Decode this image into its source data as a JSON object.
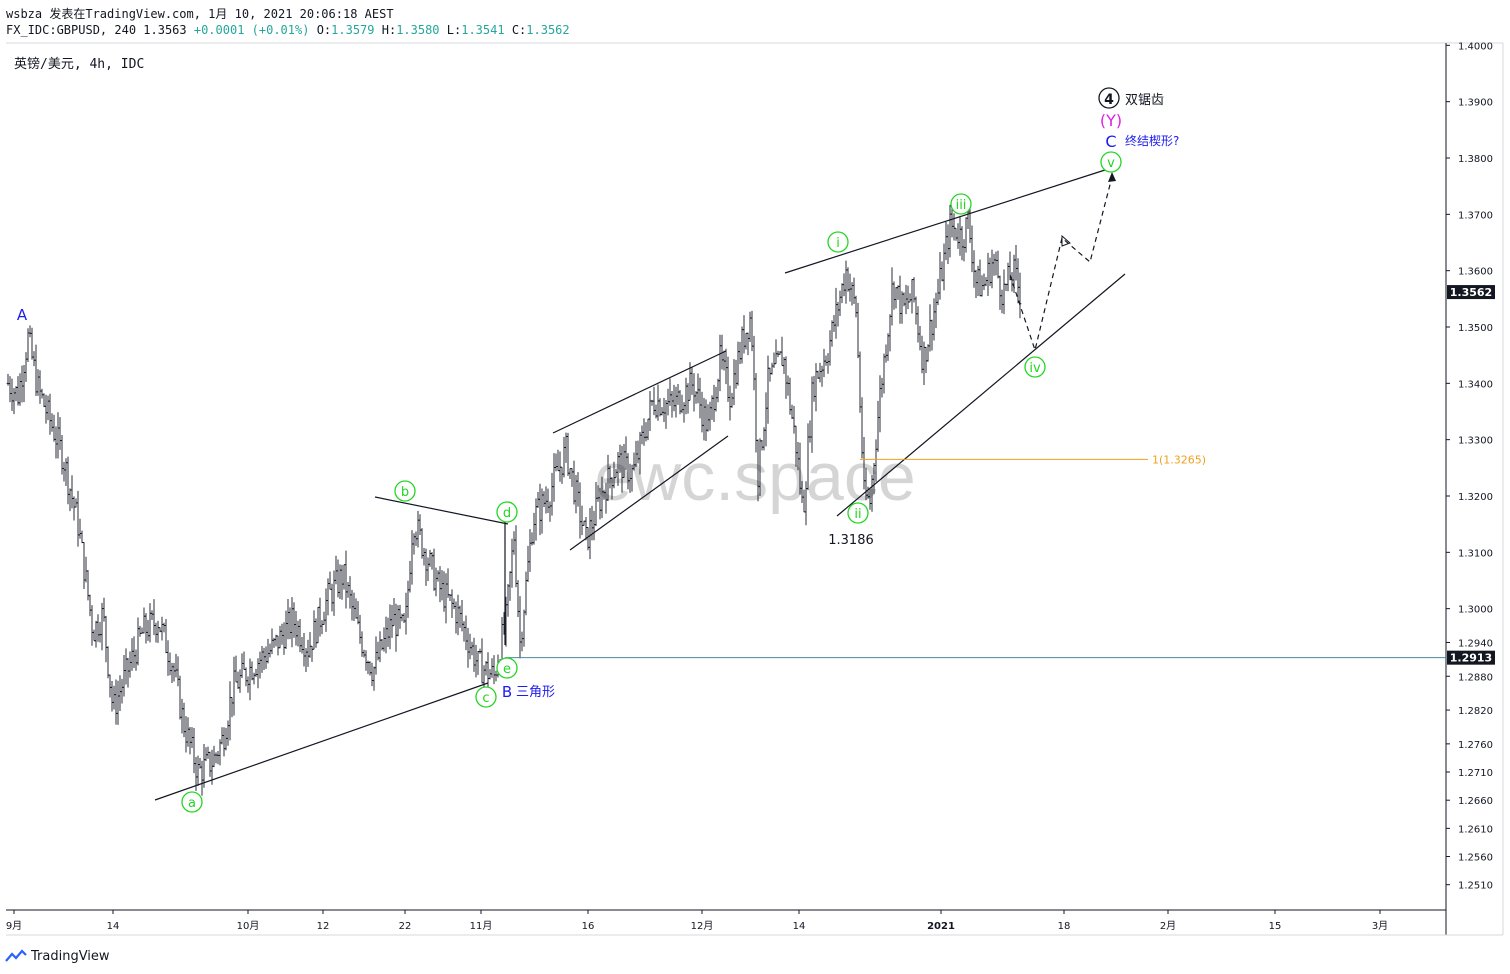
{
  "header": {
    "line1": "wsbza 发表在TradingView.com, 1月 10, 2021 20:06:18 AEST",
    "symbol_info": "FX_IDC:GBPUSD, 240 1.3563",
    "change": "+0.0001 (+0.01%)",
    "o_label": "O:",
    "o_value": "1.3579",
    "h_label": "H:",
    "h_value": "1.3580",
    "l_label": "L:",
    "l_value": "1.3541",
    "c_label": "C:",
    "c_value": "1.3562"
  },
  "symbol_label": "英镑/美元, 4h, IDC",
  "watermark": "ewc.space",
  "footer": {
    "brand": "TradingView"
  },
  "colors": {
    "candle": "#131722",
    "wave_green": "#22d622",
    "wave_blue": "#1c1cf0",
    "wave_magenta": "#e020e0",
    "fib": "#f0a020",
    "hline": "#4a8aa0",
    "last_price_bg": "#131722"
  },
  "chart_data": {
    "type": "candlestick",
    "symbol": "GBPUSD",
    "timeframe": "4h",
    "y_range": [
      1.248,
      1.405
    ],
    "y_ticks": [
      "1.4000",
      "1.3900",
      "1.3800",
      "1.3700",
      "1.3600",
      "1.3500",
      "1.3400",
      "1.3300",
      "1.3200",
      "1.3100",
      "1.3000",
      "1.2940",
      "1.2880",
      "1.2820",
      "1.2760",
      "1.2710",
      "1.2660",
      "1.2610",
      "1.2560",
      "1.2510"
    ],
    "x_ticks": [
      "9月",
      "14",
      "10月",
      "12",
      "22",
      "11月",
      "16",
      "12月",
      "14",
      "2021",
      "18",
      "2月",
      "15",
      "3月"
    ],
    "price_path": [
      [
        0,
        1.34
      ],
      [
        10,
        1.338
      ],
      [
        20,
        1.348
      ],
      [
        30,
        1.339
      ],
      [
        45,
        1.332
      ],
      [
        55,
        1.327
      ],
      [
        70,
        1.315
      ],
      [
        85,
        1.296
      ],
      [
        95,
        1.299
      ],
      [
        105,
        1.282
      ],
      [
        115,
        1.287
      ],
      [
        135,
        1.296
      ],
      [
        150,
        1.298
      ],
      [
        165,
        1.29
      ],
      [
        175,
        1.28
      ],
      [
        190,
        1.271
      ],
      [
        205,
        1.273
      ],
      [
        215,
        1.277
      ],
      [
        225,
        1.286
      ],
      [
        245,
        1.29
      ],
      [
        265,
        1.293
      ],
      [
        285,
        1.298
      ],
      [
        300,
        1.293
      ],
      [
        320,
        1.302
      ],
      [
        335,
        1.306
      ],
      [
        350,
        1.296
      ],
      [
        365,
        1.289
      ],
      [
        385,
        1.298
      ],
      [
        397,
        1.296
      ],
      [
        405,
        1.316
      ],
      [
        415,
        1.311
      ],
      [
        430,
        1.304
      ],
      [
        450,
        1.299
      ],
      [
        470,
        1.29
      ],
      [
        486,
        1.288
      ],
      [
        498,
        1.298
      ],
      [
        506,
        1.313
      ],
      [
        512,
        1.294
      ],
      [
        525,
        1.316
      ],
      [
        540,
        1.32
      ],
      [
        558,
        1.328
      ],
      [
        568,
        1.32
      ],
      [
        578,
        1.312
      ],
      [
        595,
        1.321
      ],
      [
        610,
        1.326
      ],
      [
        625,
        1.324
      ],
      [
        645,
        1.337
      ],
      [
        665,
        1.336
      ],
      [
        685,
        1.34
      ],
      [
        700,
        1.332
      ],
      [
        712,
        1.344
      ],
      [
        722,
        1.338
      ],
      [
        735,
        1.348
      ],
      [
        743,
        1.352
      ],
      [
        750,
        1.324
      ],
      [
        760,
        1.34
      ],
      [
        775,
        1.345
      ],
      [
        788,
        1.329
      ],
      [
        795,
        1.317
      ],
      [
        805,
        1.34
      ],
      [
        820,
        1.346
      ],
      [
        838,
        1.36
      ],
      [
        848,
        1.353
      ],
      [
        856,
        1.32
      ],
      [
        862,
        1.319
      ],
      [
        872,
        1.338
      ],
      [
        885,
        1.358
      ],
      [
        895,
        1.353
      ],
      [
        905,
        1.356
      ],
      [
        915,
        1.344
      ],
      [
        930,
        1.356
      ],
      [
        942,
        1.368
      ],
      [
        955,
        1.366
      ],
      [
        960,
        1.369
      ],
      [
        968,
        1.358
      ],
      [
        975,
        1.357
      ],
      [
        985,
        1.362
      ],
      [
        995,
        1.356
      ],
      [
        1005,
        1.36
      ],
      [
        1012,
        1.3562
      ]
    ],
    "annotations": [
      {
        "text": "A",
        "price": 1.351,
        "color": "blue"
      },
      {
        "text": "a",
        "price": 1.265,
        "color": "green"
      },
      {
        "text": "b",
        "price": 1.3195,
        "color": "green"
      },
      {
        "text": "c",
        "price": 1.285,
        "color": "green"
      },
      {
        "text": "d",
        "price": 1.315,
        "color": "green"
      },
      {
        "text": "e",
        "price": 1.2915,
        "color": "green"
      },
      {
        "text": "B",
        "price": 1.286,
        "color": "blue"
      },
      {
        "text": "三角形",
        "price": 1.286,
        "color": "blue"
      },
      {
        "text": "i",
        "price": 1.365,
        "color": "green"
      },
      {
        "text": "ii",
        "price": 1.316,
        "color": "green"
      },
      {
        "text": "1.3186",
        "price": 1.3186,
        "color": "black"
      },
      {
        "text": "iii",
        "price": 1.372,
        "color": "green"
      },
      {
        "text": "iv",
        "price": 1.342,
        "color": "green"
      },
      {
        "text": "v",
        "price": 1.382,
        "color": "green"
      },
      {
        "text": "C",
        "price": 1.3855,
        "color": "blue"
      },
      {
        "text": "终结楔形?",
        "price": 1.3855,
        "color": "blue"
      },
      {
        "text": "(Y)",
        "price": 1.389,
        "color": "magenta"
      },
      {
        "text": "4",
        "price": 1.393,
        "color": "black"
      },
      {
        "text": "双锯齿",
        "price": 1.393,
        "color": "black"
      }
    ],
    "fib_level": {
      "label": "1(1.3265)",
      "price": 1.3265
    },
    "horizontal_line": {
      "price": 1.2913,
      "label": "1.2913"
    },
    "last_price": {
      "price": 1.3562,
      "label": "1.3562"
    }
  }
}
